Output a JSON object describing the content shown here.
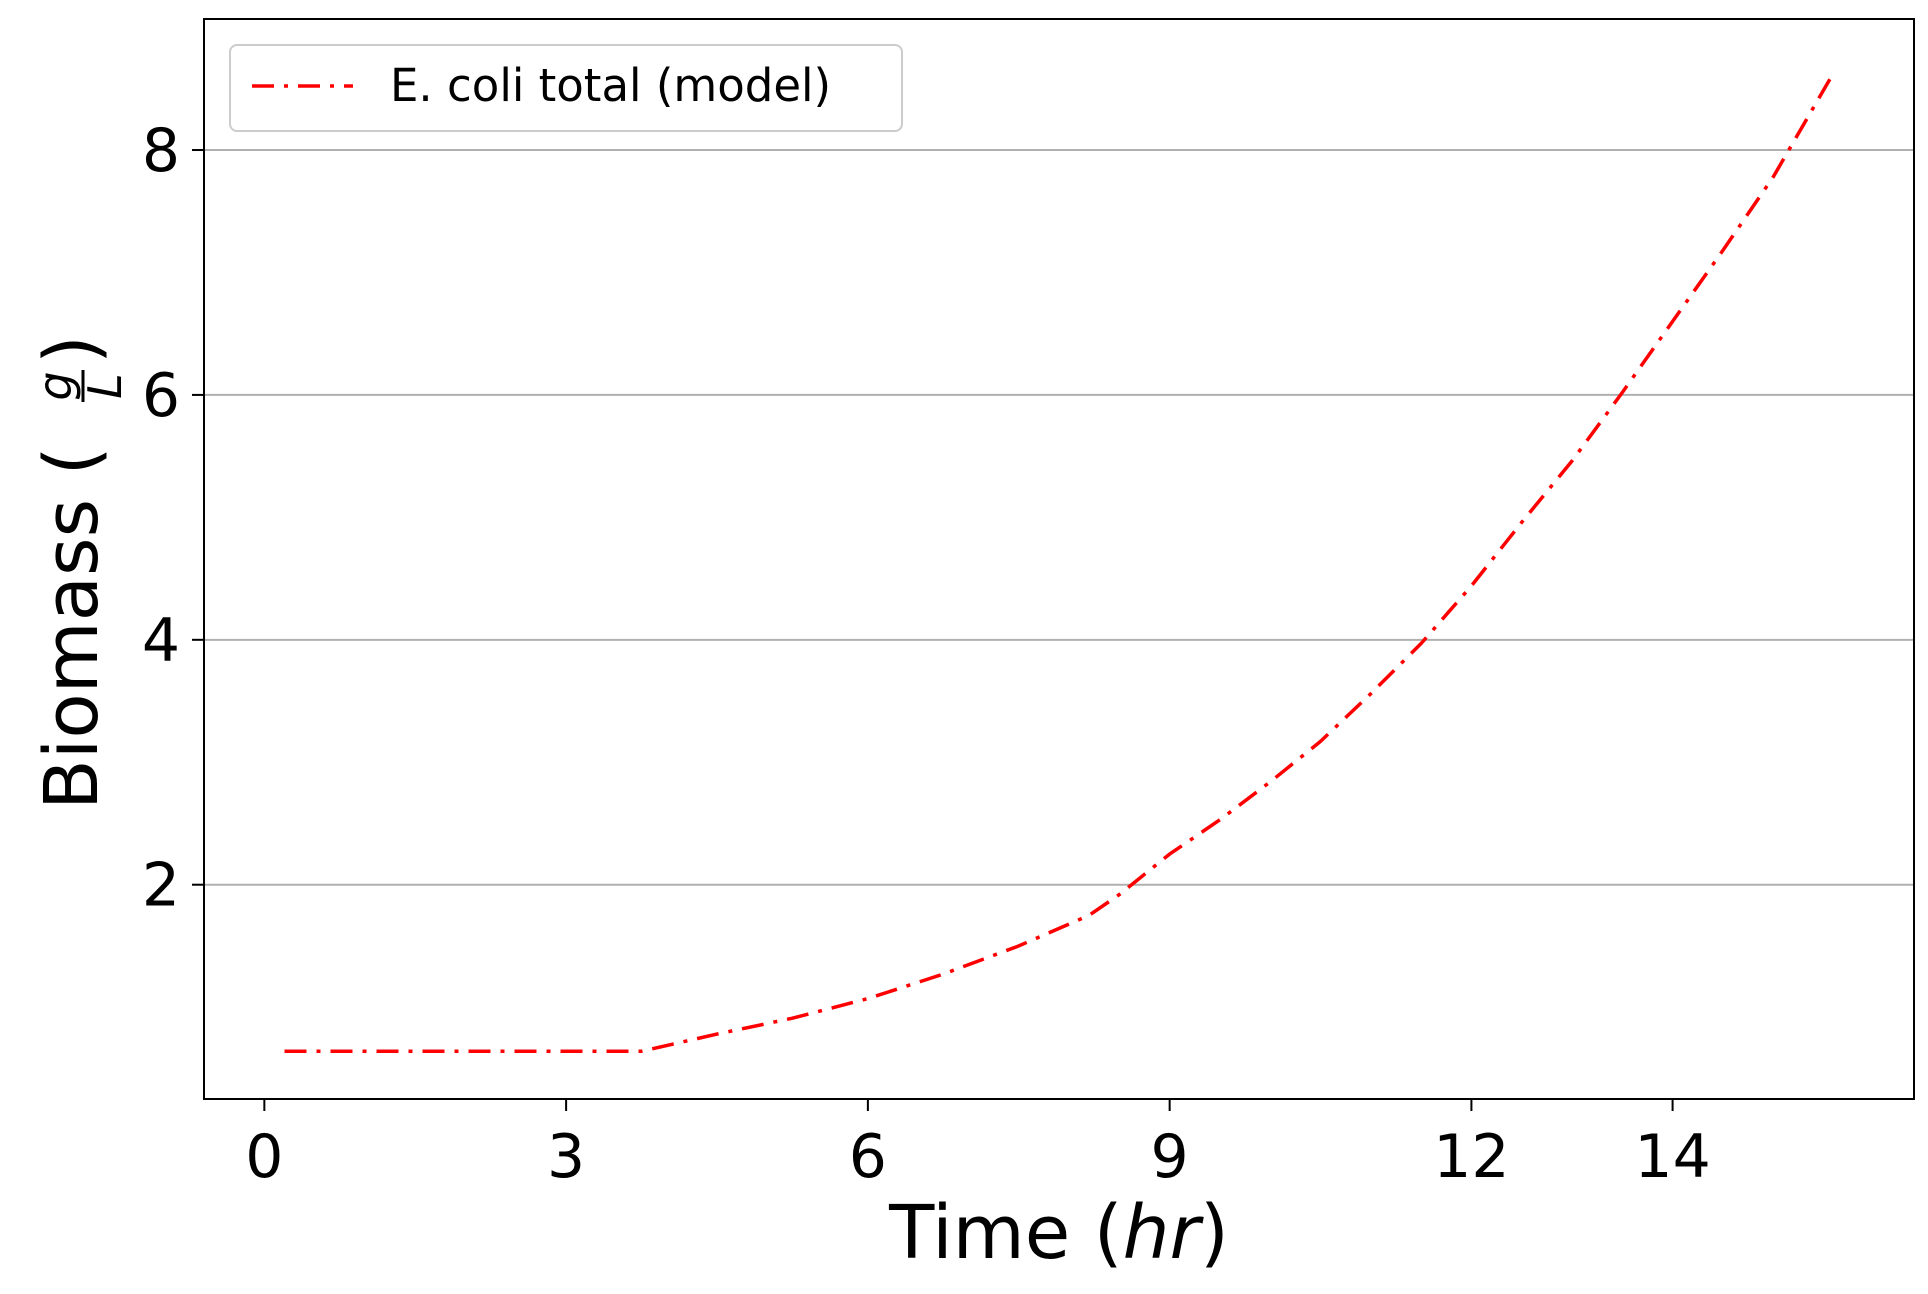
{
  "chart_data": {
    "type": "line",
    "title": "",
    "xlabel": {
      "prefix": "Time (",
      "unit": "hr",
      "suffix": ")"
    },
    "ylabel": {
      "prefix": "Biomass (",
      "fraction_numerator": "g",
      "fraction_denominator": "L",
      "suffix": ")"
    },
    "xlim": [
      -0.6,
      16.4
    ],
    "ylim": [
      0.25,
      9.07
    ],
    "xticks": [
      {
        "value": 0,
        "label": "0"
      },
      {
        "value": 3,
        "label": "3"
      },
      {
        "value": 6,
        "label": "6"
      },
      {
        "value": 9,
        "label": "9"
      },
      {
        "value": 12,
        "label": "12"
      },
      {
        "value": 14,
        "label": "14"
      }
    ],
    "yticks": [
      {
        "value": 2,
        "label": "2"
      },
      {
        "value": 4,
        "label": "4"
      },
      {
        "value": 6,
        "label": "6"
      },
      {
        "value": 8,
        "label": "8"
      }
    ],
    "grid": {
      "x": false,
      "y": true,
      "color": "#b0b0b0"
    },
    "legend": {
      "position": "upper-left"
    },
    "series": [
      {
        "name": "E. coli total (model)",
        "color": "#ff0000",
        "line_style": "dash-dot",
        "x": [
          0.2,
          1.0,
          2.0,
          3.0,
          3.75,
          4.5,
          5.25,
          6.0,
          6.75,
          7.5,
          8.2,
          8.5,
          9.0,
          9.5,
          10.0,
          10.5,
          11.0,
          11.5,
          12.0,
          12.5,
          13.0,
          13.5,
          14.0,
          14.5,
          15.0,
          15.6
        ],
        "y": [
          0.64,
          0.64,
          0.64,
          0.64,
          0.64,
          0.78,
          0.91,
          1.07,
          1.27,
          1.5,
          1.75,
          1.92,
          2.25,
          2.53,
          2.84,
          3.17,
          3.56,
          3.97,
          4.44,
          4.96,
          5.46,
          6.02,
          6.6,
          7.18,
          7.78,
          8.63
        ]
      }
    ]
  }
}
